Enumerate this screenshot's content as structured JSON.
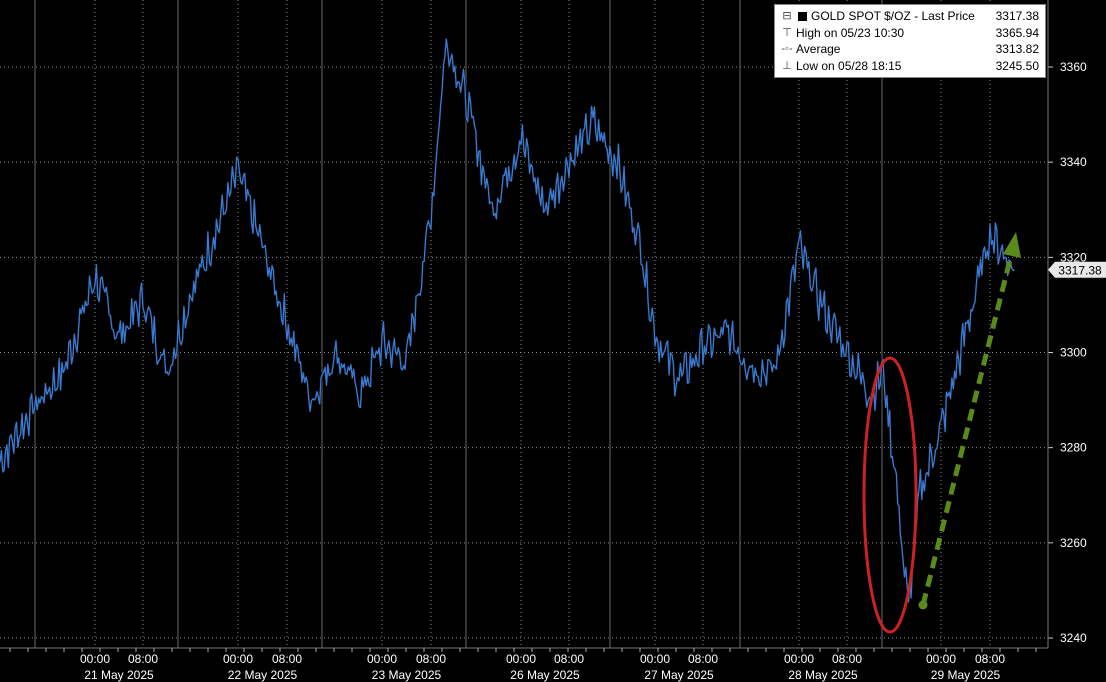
{
  "legend": {
    "title": "GOLD SPOT $/OZ - Last Price",
    "last_value": "3317.38",
    "high_label": "High on 05/23 10:30",
    "high_value": "3365.94",
    "avg_label": "Average",
    "avg_value": "3313.82",
    "low_label": "Low on 05/28 18:15",
    "low_value": "3245.50"
  },
  "last_price_tag": "3317.38",
  "colors": {
    "background": "#000000",
    "price_line": "#3a7bd5",
    "price_shadow": "#0a0a0a",
    "annotation_ellipse": "#cc2222",
    "annotation_arrow": "#5a8a1a",
    "gridlines": "#8a8a8a"
  },
  "chart_data": {
    "type": "line",
    "title": "",
    "xlabel": "",
    "ylabel": "",
    "ylim": [
      3240,
      3370
    ],
    "yticks": [
      "3240",
      "3260",
      "3280",
      "3300",
      "3320",
      "3340",
      "3360"
    ],
    "x_axis": {
      "session_labels": [
        "00:00",
        "08:00"
      ],
      "dates": [
        "21 May 2025",
        "22 May 2025",
        "23 May 2025",
        "26 May 2025",
        "27 May 2025",
        "28 May 2025",
        "29 May 2025"
      ]
    },
    "series": [
      {
        "name": "GOLD SPOT $/OZ - Last Price",
        "x": [
          "05/20 12:00",
          "05/20 16:00",
          "05/20 20:00",
          "05/21 00:00",
          "05/21 04:00",
          "05/21 08:00",
          "05/21 12:00",
          "05/21 16:00",
          "05/21 20:00",
          "05/22 00:00",
          "05/22 04:00",
          "05/22 08:00",
          "05/22 12:00",
          "05/22 16:00",
          "05/22 20:00",
          "05/23 00:00",
          "05/23 04:00",
          "05/23 08:00",
          "05/23 10:30",
          "05/23 14:00",
          "05/23 18:00",
          "05/26 00:00",
          "05/26 04:00",
          "05/26 08:00",
          "05/26 12:00",
          "05/26 16:00",
          "05/26 20:00",
          "05/27 00:00",
          "05/27 04:00",
          "05/27 08:00",
          "05/27 12:00",
          "05/27 16:00",
          "05/27 20:00",
          "05/28 00:00",
          "05/28 04:00",
          "05/28 08:00",
          "05/28 12:00",
          "05/28 14:00",
          "05/28 16:00",
          "05/28 18:15",
          "05/28 20:00",
          "05/29 00:00",
          "05/29 04:00",
          "05/29 08:00",
          "05/29 12:00"
        ],
        "values": [
          3277,
          3288,
          3296,
          3316,
          3303,
          3311,
          3296,
          3312,
          3325,
          3338,
          3322,
          3306,
          3290,
          3300,
          3291,
          3302,
          3298,
          3329,
          3365.94,
          3352,
          3330,
          3345,
          3330,
          3340,
          3348,
          3340,
          3322,
          3304,
          3294,
          3301,
          3304,
          3297,
          3296,
          3322,
          3309,
          3300,
          3291,
          3296,
          3275,
          3245.5,
          3270,
          3284,
          3304,
          3325,
          3317.38
        ]
      }
    ],
    "annotations": [
      {
        "type": "ellipse",
        "description": "highlighted drop to low"
      },
      {
        "type": "arrow",
        "description": "rebound trend"
      }
    ]
  }
}
